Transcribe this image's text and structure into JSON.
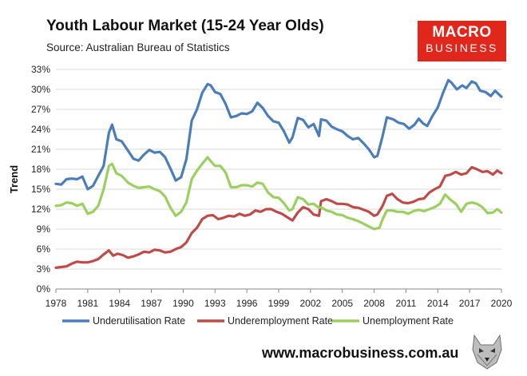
{
  "header": {
    "title": "Youth Labour Market (15-24 Year Olds)",
    "source": "Source: Australian Bureau of Statistics"
  },
  "logo": {
    "line1": "MACRO",
    "line2": "BUSINESS",
    "color": "#e1261c"
  },
  "footer": {
    "url": "www.macrobusiness.com.au"
  },
  "chart_data": {
    "type": "line",
    "ylabel": "Trend",
    "xlim": [
      1978,
      2020
    ],
    "ylim": [
      0,
      33
    ],
    "x_ticks": [
      "1978",
      "1981",
      "1984",
      "1987",
      "1990",
      "1993",
      "1996",
      "1999",
      "2002",
      "2005",
      "2008",
      "2011",
      "2014",
      "2017",
      "2020"
    ],
    "y_ticks": [
      "0%",
      "3%",
      "6%",
      "9%",
      "12%",
      "15%",
      "18%",
      "21%",
      "24%",
      "27%",
      "30%",
      "33%"
    ],
    "grid": true,
    "legend_position": "bottom",
    "series": [
      {
        "name": "Underutilisation Rate",
        "color": "#4a7ebb",
        "points": [
          [
            1978,
            15.8
          ],
          [
            1978.5,
            15.7
          ],
          [
            1979,
            16.5
          ],
          [
            1979.5,
            16.6
          ],
          [
            1980,
            16.5
          ],
          [
            1980.5,
            16.9
          ],
          [
            1981,
            15.0
          ],
          [
            1981.5,
            15.5
          ],
          [
            1982,
            17.0
          ],
          [
            1982.5,
            18.5
          ],
          [
            1983,
            23.5
          ],
          [
            1983.3,
            24.7
          ],
          [
            1983.7,
            22.5
          ],
          [
            1984.2,
            22.2
          ],
          [
            1984.8,
            20.8
          ],
          [
            1985.3,
            19.6
          ],
          [
            1985.8,
            19.3
          ],
          [
            1986.3,
            20.2
          ],
          [
            1986.8,
            20.9
          ],
          [
            1987.3,
            20.5
          ],
          [
            1987.8,
            20.6
          ],
          [
            1988.3,
            19.8
          ],
          [
            1988.8,
            18.1
          ],
          [
            1989.3,
            16.3
          ],
          [
            1989.8,
            16.8
          ],
          [
            1990.3,
            19.5
          ],
          [
            1990.8,
            25.3
          ],
          [
            1991.3,
            27.0
          ],
          [
            1991.8,
            29.5
          ],
          [
            1992.3,
            30.8
          ],
          [
            1992.6,
            30.6
          ],
          [
            1993,
            29.6
          ],
          [
            1993.5,
            29.3
          ],
          [
            1994,
            27.8
          ],
          [
            1994.5,
            25.8
          ],
          [
            1995,
            26.0
          ],
          [
            1995.5,
            26.4
          ],
          [
            1996,
            26.3
          ],
          [
            1996.5,
            26.7
          ],
          [
            1997,
            28.0
          ],
          [
            1997.5,
            27.2
          ],
          [
            1998,
            26.0
          ],
          [
            1998.5,
            25.2
          ],
          [
            1999,
            25.0
          ],
          [
            1999.5,
            23.7
          ],
          [
            2000,
            22.0
          ],
          [
            2000.3,
            22.8
          ],
          [
            2000.8,
            25.7
          ],
          [
            2001.3,
            25.4
          ],
          [
            2001.8,
            24.3
          ],
          [
            2002.3,
            24.8
          ],
          [
            2002.8,
            23.0
          ],
          [
            2003,
            25.5
          ],
          [
            2003.5,
            25.3
          ],
          [
            2004,
            24.4
          ],
          [
            2004.5,
            24.0
          ],
          [
            2005,
            23.7
          ],
          [
            2005.5,
            23.0
          ],
          [
            2006,
            22.5
          ],
          [
            2006.5,
            22.7
          ],
          [
            2007,
            21.9
          ],
          [
            2007.5,
            21.0
          ],
          [
            2008,
            19.8
          ],
          [
            2008.3,
            20.0
          ],
          [
            2008.8,
            23.0
          ],
          [
            2009.2,
            25.8
          ],
          [
            2009.8,
            25.5
          ],
          [
            2010.3,
            25.0
          ],
          [
            2010.8,
            24.8
          ],
          [
            2011.3,
            24.1
          ],
          [
            2011.8,
            24.7
          ],
          [
            2012.2,
            25.6
          ],
          [
            2012.6,
            24.9
          ],
          [
            2013,
            24.5
          ],
          [
            2013.5,
            26.0
          ],
          [
            2014,
            27.3
          ],
          [
            2014.5,
            29.5
          ],
          [
            2015,
            31.4
          ],
          [
            2015.3,
            31.0
          ],
          [
            2015.8,
            30.0
          ],
          [
            2016.3,
            30.6
          ],
          [
            2016.7,
            30.2
          ],
          [
            2017.2,
            31.2
          ],
          [
            2017.6,
            30.9
          ],
          [
            2018,
            29.8
          ],
          [
            2018.5,
            29.6
          ],
          [
            2019,
            29.0
          ],
          [
            2019.4,
            29.8
          ],
          [
            2019.8,
            29.2
          ],
          [
            2020,
            28.9
          ]
        ]
      },
      {
        "name": "Underemployment Rate",
        "color": "#be4b48",
        "points": [
          [
            1978,
            3.2
          ],
          [
            1978.5,
            3.3
          ],
          [
            1979,
            3.4
          ],
          [
            1979.5,
            3.8
          ],
          [
            1980,
            4.1
          ],
          [
            1980.5,
            4.0
          ],
          [
            1981,
            4.0
          ],
          [
            1981.5,
            4.2
          ],
          [
            1982,
            4.5
          ],
          [
            1982.5,
            5.2
          ],
          [
            1983,
            5.8
          ],
          [
            1983.4,
            5.0
          ],
          [
            1983.8,
            5.3
          ],
          [
            1984.3,
            5.1
          ],
          [
            1984.8,
            4.7
          ],
          [
            1985.3,
            4.9
          ],
          [
            1985.8,
            5.2
          ],
          [
            1986.3,
            5.6
          ],
          [
            1986.8,
            5.5
          ],
          [
            1987.3,
            5.9
          ],
          [
            1987.8,
            5.8
          ],
          [
            1988.3,
            5.5
          ],
          [
            1988.8,
            5.6
          ],
          [
            1989.3,
            6.0
          ],
          [
            1989.8,
            6.3
          ],
          [
            1990.3,
            7.0
          ],
          [
            1990.8,
            8.4
          ],
          [
            1991.3,
            9.2
          ],
          [
            1991.8,
            10.5
          ],
          [
            1992.3,
            11.0
          ],
          [
            1992.8,
            11.1
          ],
          [
            1993.3,
            10.5
          ],
          [
            1993.8,
            10.7
          ],
          [
            1994.3,
            11.0
          ],
          [
            1994.8,
            10.9
          ],
          [
            1995.3,
            11.3
          ],
          [
            1995.8,
            11.0
          ],
          [
            1996.3,
            11.2
          ],
          [
            1996.8,
            11.8
          ],
          [
            1997.3,
            11.6
          ],
          [
            1997.8,
            12.0
          ],
          [
            1998.3,
            12.0
          ],
          [
            1998.8,
            11.6
          ],
          [
            1999.3,
            11.3
          ],
          [
            1999.8,
            10.8
          ],
          [
            2000.3,
            10.3
          ],
          [
            2000.8,
            11.5
          ],
          [
            2001.3,
            12.3
          ],
          [
            2001.8,
            12.0
          ],
          [
            2002.3,
            11.2
          ],
          [
            2002.8,
            11.0
          ],
          [
            2003,
            13.2
          ],
          [
            2003.5,
            13.5
          ],
          [
            2004,
            13.2
          ],
          [
            2004.5,
            12.8
          ],
          [
            2005,
            12.8
          ],
          [
            2005.5,
            12.7
          ],
          [
            2006,
            12.3
          ],
          [
            2006.5,
            12.2
          ],
          [
            2007,
            11.9
          ],
          [
            2007.5,
            11.6
          ],
          [
            2008,
            11.0
          ],
          [
            2008.3,
            11.2
          ],
          [
            2008.8,
            12.5
          ],
          [
            2009.2,
            14.0
          ],
          [
            2009.7,
            14.3
          ],
          [
            2010.2,
            13.5
          ],
          [
            2010.7,
            13.0
          ],
          [
            2011.2,
            12.9
          ],
          [
            2011.7,
            13.1
          ],
          [
            2012.2,
            13.5
          ],
          [
            2012.7,
            13.6
          ],
          [
            2013.2,
            14.5
          ],
          [
            2013.7,
            15.0
          ],
          [
            2014.2,
            15.4
          ],
          [
            2014.7,
            17.0
          ],
          [
            2015.2,
            17.2
          ],
          [
            2015.7,
            17.6
          ],
          [
            2016.2,
            17.2
          ],
          [
            2016.7,
            17.4
          ],
          [
            2017.2,
            18.3
          ],
          [
            2017.7,
            18.0
          ],
          [
            2018.2,
            17.6
          ],
          [
            2018.7,
            17.7
          ],
          [
            2019.2,
            17.2
          ],
          [
            2019.6,
            17.8
          ],
          [
            2020,
            17.4
          ]
        ]
      },
      {
        "name": "Unemployment Rate",
        "color": "#9bd05f",
        "points": [
          [
            1978,
            12.5
          ],
          [
            1978.5,
            12.6
          ],
          [
            1979,
            13.0
          ],
          [
            1979.5,
            12.9
          ],
          [
            1980,
            12.5
          ],
          [
            1980.5,
            12.8
          ],
          [
            1981,
            11.3
          ],
          [
            1981.5,
            11.6
          ],
          [
            1982,
            12.5
          ],
          [
            1982.5,
            15.0
          ],
          [
            1983,
            18.5
          ],
          [
            1983.3,
            18.8
          ],
          [
            1983.7,
            17.4
          ],
          [
            1984.2,
            17.0
          ],
          [
            1984.8,
            16.0
          ],
          [
            1985.3,
            15.5
          ],
          [
            1985.8,
            15.2
          ],
          [
            1986.3,
            15.3
          ],
          [
            1986.8,
            15.4
          ],
          [
            1987.3,
            15.0
          ],
          [
            1987.8,
            14.7
          ],
          [
            1988.3,
            13.9
          ],
          [
            1988.8,
            12.2
          ],
          [
            1989.3,
            11.0
          ],
          [
            1989.8,
            11.6
          ],
          [
            1990.3,
            13.0
          ],
          [
            1990.8,
            16.5
          ],
          [
            1991.3,
            17.8
          ],
          [
            1991.8,
            18.8
          ],
          [
            1992.3,
            19.8
          ],
          [
            1992.6,
            19.2
          ],
          [
            1993,
            18.5
          ],
          [
            1993.5,
            18.5
          ],
          [
            1994,
            17.5
          ],
          [
            1994.5,
            15.3
          ],
          [
            1995,
            15.3
          ],
          [
            1995.5,
            15.6
          ],
          [
            1996,
            15.6
          ],
          [
            1996.5,
            15.4
          ],
          [
            1997,
            16.0
          ],
          [
            1997.5,
            15.8
          ],
          [
            1998,
            14.5
          ],
          [
            1998.5,
            13.8
          ],
          [
            1999,
            13.7
          ],
          [
            1999.5,
            12.9
          ],
          [
            2000,
            11.8
          ],
          [
            2000.3,
            12.0
          ],
          [
            2000.8,
            13.8
          ],
          [
            2001.3,
            13.5
          ],
          [
            2001.8,
            12.7
          ],
          [
            2002.3,
            12.8
          ],
          [
            2002.8,
            12.2
          ],
          [
            2003,
            12.3
          ],
          [
            2003.5,
            11.8
          ],
          [
            2004,
            11.6
          ],
          [
            2004.5,
            11.2
          ],
          [
            2005,
            11.1
          ],
          [
            2005.5,
            10.7
          ],
          [
            2006,
            10.5
          ],
          [
            2006.5,
            10.2
          ],
          [
            2007,
            9.8
          ],
          [
            2007.5,
            9.4
          ],
          [
            2008,
            9.0
          ],
          [
            2008.5,
            9.2
          ],
          [
            2008.8,
            10.5
          ],
          [
            2009.2,
            11.8
          ],
          [
            2009.7,
            11.8
          ],
          [
            2010.2,
            11.6
          ],
          [
            2010.7,
            11.6
          ],
          [
            2011.2,
            11.3
          ],
          [
            2011.7,
            11.7
          ],
          [
            2012.2,
            11.9
          ],
          [
            2012.7,
            11.7
          ],
          [
            2013.2,
            12.0
          ],
          [
            2013.7,
            12.3
          ],
          [
            2014.2,
            12.8
          ],
          [
            2014.7,
            14.2
          ],
          [
            2015.2,
            13.4
          ],
          [
            2015.7,
            12.8
          ],
          [
            2016.2,
            11.6
          ],
          [
            2016.7,
            12.8
          ],
          [
            2017.2,
            13.0
          ],
          [
            2017.7,
            12.8
          ],
          [
            2018.2,
            12.3
          ],
          [
            2018.7,
            11.4
          ],
          [
            2019.2,
            11.5
          ],
          [
            2019.6,
            12.0
          ],
          [
            2020,
            11.5
          ]
        ]
      }
    ]
  }
}
